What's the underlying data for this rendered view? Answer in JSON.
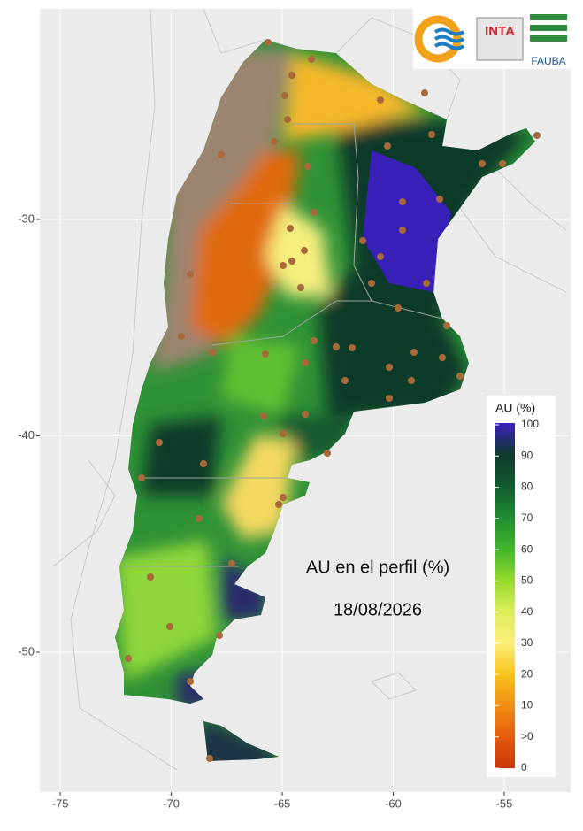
{
  "map": {
    "xlim": [
      -75.92,
      -52.01
    ],
    "ylim": [
      -56.46,
      -20.27
    ],
    "xticks": [
      -75,
      -70,
      -65,
      -60,
      -55
    ],
    "yticks": [
      -30,
      -40,
      -50
    ],
    "annotation": {
      "title": "AU en el perfil (%)",
      "date": "18/08/2026"
    },
    "legend": {
      "title": "AU (%)",
      "levels": [
        100,
        90,
        80,
        70,
        60,
        50,
        40,
        30,
        20,
        10,
        ">0",
        0
      ],
      "colors": [
        "#3b1fc0",
        "#103a2c",
        "#125a30",
        "#1f8c30",
        "#3fb62c",
        "#95d82c",
        "#dcee5a",
        "#fcef7c",
        "#f9c41c",
        "#f08e14",
        "#e45c0c",
        "#c8360a"
      ]
    },
    "logos": {
      "inta": "INTA",
      "fauba": "FAUBA"
    }
  }
}
